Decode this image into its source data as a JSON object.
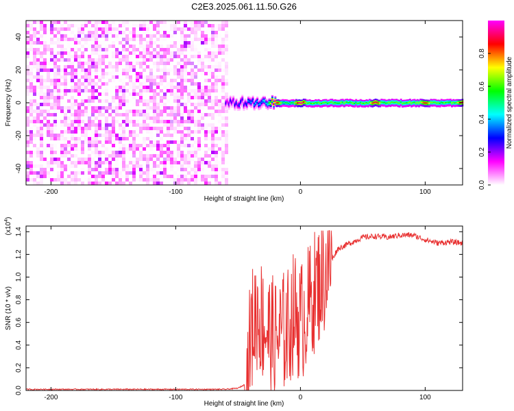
{
  "page_title": "C2E3.2025.061.11.50.G26",
  "chart_data": [
    {
      "type": "heatmap",
      "xlabel": "Height of straight line (km)",
      "ylabel": "Frequency (Hz)",
      "xlim": [
        -220,
        130
      ],
      "ylim": [
        -50,
        50
      ],
      "x_ticks": [
        -200,
        -100,
        0,
        100
      ],
      "y_ticks": [
        -40,
        -20,
        0,
        20,
        40
      ],
      "grid": false,
      "colorbar": {
        "label": "Normalized spectral amplitude",
        "range": [
          0,
          1
        ],
        "ticks": [
          0.0,
          0.2,
          0.4,
          0.6,
          0.8
        ],
        "colormap": [
          "#ffffff",
          "#ff00ff",
          "#0000ff",
          "#00ffff",
          "#00ff00",
          "#ffff00",
          "#ff0000",
          "#ff00ff"
        ]
      },
      "features": {
        "noise_region_x": [
          -220,
          -60
        ],
        "noise_amplitude": [
          0.0,
          0.2
        ],
        "band_center_hz": 0,
        "band_start_x": -60,
        "band_peak_x": [
          -20,
          0,
          60,
          100,
          130
        ],
        "band_peak_amplitude": [
          0.9,
          0.95,
          0.9,
          0.85,
          0.9
        ]
      }
    },
    {
      "type": "line",
      "xlabel": "Height of straight line (km)",
      "ylabel": "SNR (10 * v/v)",
      "y_scale_label": "(x10",
      "y_scale_exp": "4",
      "xlim": [
        -220,
        130
      ],
      "ylim": [
        0,
        1.45
      ],
      "x_ticks": [
        -200,
        -100,
        0,
        100
      ],
      "y_ticks": [
        "0.0",
        "0.2",
        "0.4",
        "0.6",
        "0.8",
        "1.0",
        "1.2",
        "1.4"
      ],
      "grid": false,
      "series": [
        {
          "color": "#e83030",
          "keypoints": {
            "x": [
              -220,
              -60,
              -50,
              -45,
              -42,
              -40,
              -35,
              -30,
              -25,
              -20,
              -15,
              -10,
              -5,
              0,
              5,
              10,
              15,
              20,
              25,
              30,
              40,
              50,
              60,
              70,
              80,
              90,
              95,
              100,
              110,
              120,
              130
            ],
            "y": [
              0.01,
              0.01,
              0.02,
              0.05,
              0.15,
              0.5,
              0.7,
              0.6,
              0.5,
              0.45,
              0.5,
              0.55,
              0.7,
              0.6,
              0.7,
              0.85,
              0.95,
              1.05,
              1.15,
              1.25,
              1.3,
              1.35,
              1.36,
              1.35,
              1.37,
              1.37,
              1.35,
              1.33,
              1.3,
              1.31,
              1.3
            ]
          }
        }
      ]
    }
  ]
}
